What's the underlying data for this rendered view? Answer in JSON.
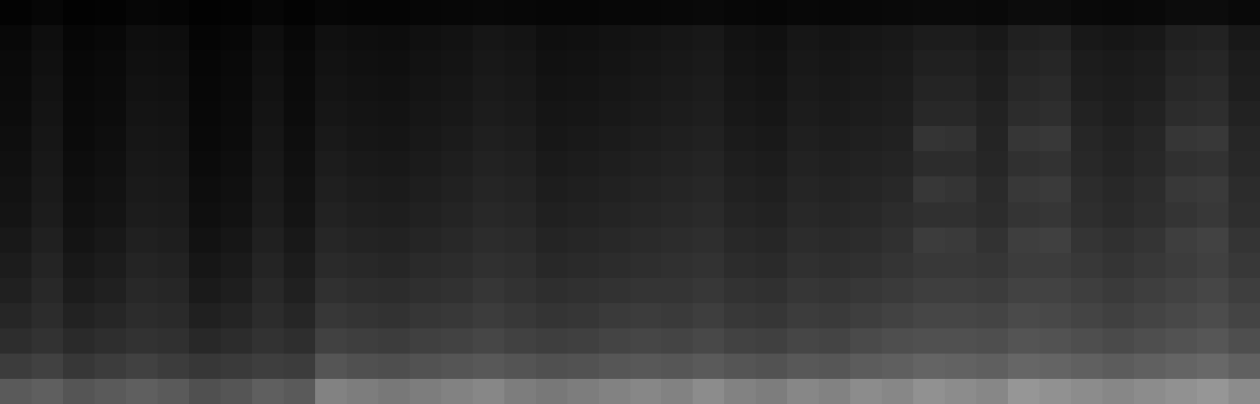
{
  "chart_data": {
    "type": "heatmap",
    "tick_labels": false,
    "grid": false,
    "colors": [
      "#000000",
      "#ffffff"
    ],
    "zlim": [
      0,
      255
    ],
    "cells": [
      [
        90,
        95,
        85,
        90,
        95,
        90,
        80,
        85,
        95,
        90,
        130,
        125,
        120,
        125,
        130,
        135,
        125,
        120,
        125,
        130,
        135,
        130,
        140,
        130,
        125,
        135,
        130,
        140,
        135,
        145,
        140,
        135,
        150,
        145,
        140,
        135,
        140,
        145,
        150,
        140
      ],
      [
        60,
        65,
        55,
        60,
        65,
        60,
        55,
        58,
        62,
        60,
        85,
        80,
        78,
        82,
        85,
        88,
        84,
        80,
        82,
        86,
        88,
        86,
        90,
        85,
        82,
        88,
        86,
        92,
        95,
        100,
        98,
        95,
        102,
        100,
        96,
        92,
        96,
        100,
        104,
        96
      ],
      [
        45,
        50,
        42,
        46,
        50,
        48,
        40,
        44,
        50,
        46,
        65,
        62,
        60,
        64,
        66,
        70,
        65,
        62,
        64,
        68,
        70,
        68,
        72,
        66,
        64,
        70,
        68,
        74,
        78,
        80,
        80,
        78,
        84,
        82,
        78,
        74,
        78,
        82,
        86,
        78
      ],
      [
        38,
        44,
        34,
        38,
        44,
        42,
        32,
        36,
        44,
        38,
        55,
        52,
        50,
        54,
        56,
        60,
        56,
        52,
        54,
        58,
        60,
        58,
        62,
        56,
        54,
        60,
        58,
        62,
        66,
        70,
        70,
        68,
        74,
        72,
        68,
        64,
        68,
        72,
        76,
        68
      ],
      [
        32,
        40,
        28,
        32,
        40,
        38,
        26,
        30,
        40,
        32,
        48,
        45,
        44,
        47,
        49,
        54,
        50,
        46,
        48,
        50,
        52,
        52,
        55,
        50,
        48,
        54,
        52,
        55,
        58,
        62,
        62,
        60,
        66,
        66,
        62,
        58,
        62,
        66,
        70,
        62
      ],
      [
        28,
        36,
        24,
        28,
        36,
        34,
        22,
        26,
        36,
        28,
        42,
        40,
        38,
        42,
        44,
        48,
        46,
        40,
        42,
        44,
        46,
        48,
        50,
        44,
        42,
        48,
        46,
        48,
        52,
        56,
        56,
        54,
        60,
        60,
        56,
        52,
        56,
        60,
        64,
        56
      ],
      [
        24,
        32,
        20,
        24,
        32,
        30,
        18,
        22,
        32,
        24,
        38,
        35,
        34,
        37,
        40,
        44,
        42,
        36,
        38,
        40,
        42,
        44,
        46,
        40,
        38,
        44,
        42,
        44,
        48,
        60,
        58,
        50,
        62,
        64,
        52,
        48,
        52,
        62,
        66,
        52
      ],
      [
        20,
        28,
        17,
        20,
        28,
        27,
        15,
        18,
        28,
        20,
        34,
        31,
        30,
        33,
        36,
        40,
        38,
        32,
        34,
        36,
        38,
        40,
        42,
        36,
        34,
        40,
        38,
        40,
        44,
        48,
        48,
        44,
        52,
        54,
        46,
        42,
        46,
        52,
        56,
        46
      ],
      [
        18,
        26,
        15,
        18,
        26,
        25,
        13,
        16,
        26,
        18,
        31,
        28,
        27,
        30,
        33,
        37,
        35,
        29,
        31,
        33,
        35,
        37,
        39,
        33,
        31,
        37,
        35,
        37,
        40,
        55,
        52,
        42,
        56,
        58,
        44,
        40,
        44,
        56,
        58,
        44
      ],
      [
        16,
        24,
        13,
        16,
        24,
        23,
        11,
        14,
        24,
        16,
        28,
        25,
        24,
        27,
        30,
        34,
        32,
        26,
        28,
        30,
        32,
        34,
        36,
        30,
        28,
        34,
        32,
        34,
        36,
        44,
        44,
        38,
        48,
        50,
        40,
        36,
        40,
        48,
        50,
        40
      ],
      [
        14,
        22,
        11,
        14,
        22,
        21,
        9,
        12,
        22,
        14,
        25,
        22,
        21,
        24,
        27,
        31,
        29,
        23,
        25,
        27,
        29,
        31,
        33,
        27,
        25,
        31,
        29,
        31,
        33,
        52,
        50,
        36,
        54,
        56,
        38,
        34,
        38,
        54,
        56,
        38
      ],
      [
        12,
        20,
        10,
        12,
        20,
        19,
        8,
        11,
        20,
        12,
        22,
        20,
        19,
        22,
        24,
        28,
        26,
        21,
        22,
        24,
        26,
        28,
        30,
        24,
        22,
        28,
        26,
        28,
        30,
        40,
        40,
        34,
        44,
        46,
        34,
        30,
        34,
        44,
        46,
        34
      ],
      [
        11,
        18,
        9,
        11,
        18,
        17,
        7,
        10,
        18,
        11,
        20,
        18,
        17,
        20,
        22,
        26,
        24,
        19,
        20,
        22,
        24,
        26,
        28,
        22,
        20,
        26,
        24,
        26,
        28,
        36,
        36,
        30,
        40,
        42,
        30,
        28,
        30,
        40,
        42,
        30
      ],
      [
        10,
        16,
        8,
        10,
        16,
        15,
        6,
        9,
        16,
        10,
        18,
        16,
        15,
        18,
        20,
        24,
        22,
        17,
        18,
        20,
        22,
        24,
        26,
        20,
        18,
        24,
        22,
        24,
        26,
        32,
        32,
        28,
        36,
        38,
        28,
        26,
        28,
        36,
        38,
        28
      ],
      [
        8,
        14,
        6,
        8,
        14,
        13,
        5,
        7,
        14,
        8,
        16,
        14,
        13,
        16,
        18,
        22,
        20,
        15,
        16,
        18,
        20,
        22,
        24,
        18,
        16,
        22,
        20,
        22,
        24,
        28,
        28,
        24,
        32,
        34,
        24,
        22,
        24,
        32,
        34,
        24
      ],
      [
        3,
        6,
        2,
        3,
        6,
        5,
        2,
        3,
        6,
        3,
        6,
        5,
        5,
        6,
        7,
        8,
        7,
        6,
        6,
        7,
        7,
        8,
        9,
        7,
        6,
        8,
        7,
        8,
        9,
        10,
        10,
        9,
        12,
        12,
        9,
        8,
        9,
        12,
        12,
        9
      ]
    ]
  }
}
